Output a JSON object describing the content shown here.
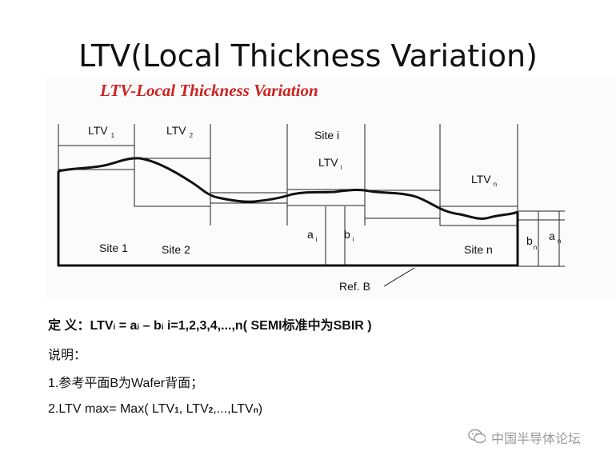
{
  "title": "LTV(Local Thickness Variation)",
  "figure": {
    "title": "LTV-Local Thickness Variation",
    "labels": {
      "ltv1": "LTV",
      "ltv1_sub": "1",
      "ltv2": "LTV",
      "ltv2_sub": "2",
      "site_i": "Site i",
      "ltvi": "LTV",
      "ltvi_sub": "i",
      "ltvn": "LTV",
      "ltvn_sub": "n",
      "ai": "a",
      "ai_sub": "i",
      "bi": "b",
      "bi_sub": "i",
      "bn": "b",
      "bn_sub": "n",
      "an": "a",
      "an_sub": "n",
      "site1": "Site 1",
      "site2": "Site 2",
      "siten": "Site n",
      "refb": "Ref. B"
    }
  },
  "text": {
    "def_prefix": "定 义：",
    "def_ltv": "LTV",
    "def_i1": "i",
    "def_eq": " = a",
    "def_i2": "i",
    "def_minus": " – b",
    "def_i3": "i",
    "def_rest": "   i=1,2,3,4,...,n( SEMI标准中为SBIR )",
    "note_heading": "说明：",
    "note1": "1.参考平面B为Wafer背面；",
    "note2_a": "2.LTV max=  Max( LTV",
    "note2_s1": "1",
    "note2_b": ", LTV",
    "note2_s2": "2",
    "note2_c": ",...,LTV",
    "note2_sn": "n",
    "note2_d": ")"
  },
  "watermark": "中国半导体论坛"
}
